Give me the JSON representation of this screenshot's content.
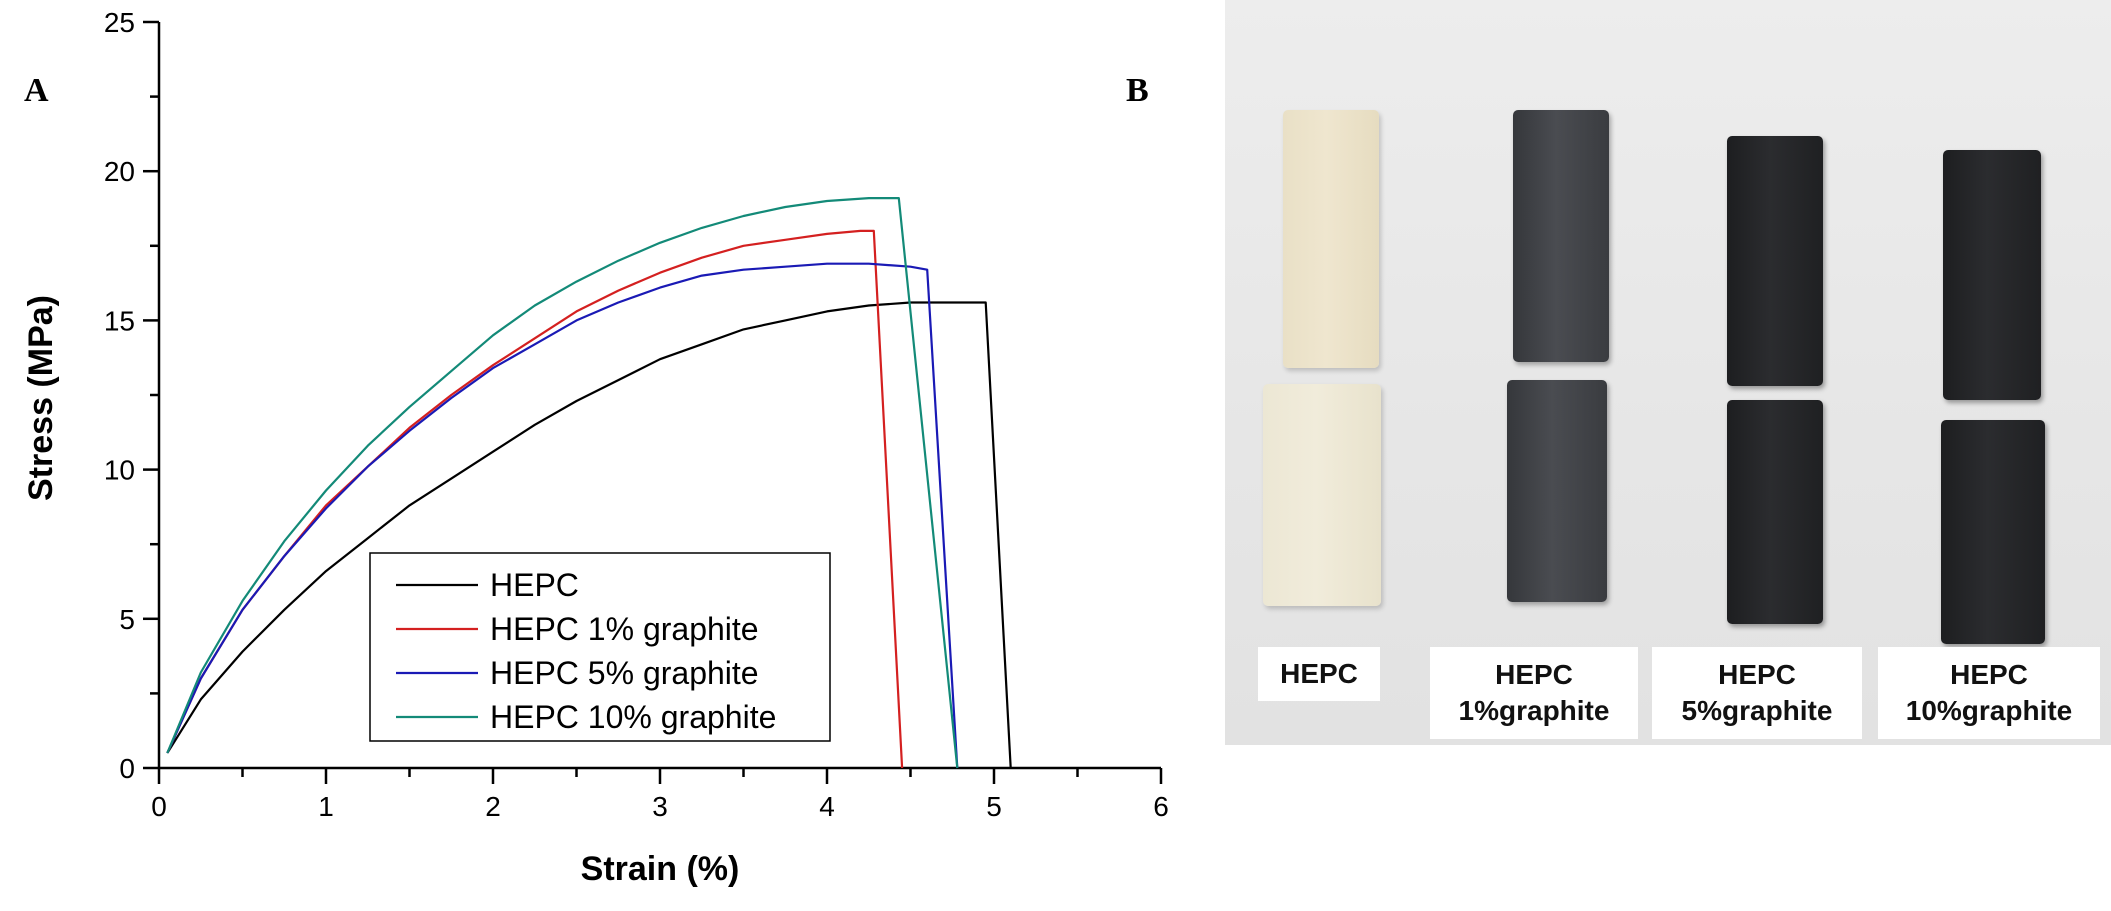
{
  "panels": {
    "a_label": "A",
    "b_label": "B"
  },
  "chart_data": {
    "type": "line",
    "title": "",
    "xlabel": "Strain (%)",
    "ylabel": "Stress (MPa)",
    "xlim": [
      0,
      6
    ],
    "ylim": [
      0,
      25
    ],
    "xticks": [
      0,
      1,
      2,
      3,
      4,
      5,
      6
    ],
    "yticks": [
      0,
      5,
      10,
      15,
      20,
      25
    ],
    "grid": false,
    "legend_position": "bottom-center",
    "series": [
      {
        "name": "HEPC",
        "color": "#000000",
        "x": [
          0.05,
          0.25,
          0.5,
          0.75,
          1.0,
          1.25,
          1.5,
          1.75,
          2.0,
          2.25,
          2.5,
          2.75,
          3.0,
          3.25,
          3.5,
          3.75,
          4.0,
          4.25,
          4.5,
          4.75,
          4.95,
          5.1
        ],
        "y": [
          0.5,
          2.3,
          3.9,
          5.3,
          6.6,
          7.7,
          8.8,
          9.7,
          10.6,
          11.5,
          12.3,
          13.0,
          13.7,
          14.2,
          14.7,
          15.0,
          15.3,
          15.5,
          15.6,
          15.6,
          15.6,
          0.0
        ]
      },
      {
        "name": "HEPC 1% graphite",
        "color": "#d42020",
        "x": [
          0.05,
          0.25,
          0.5,
          0.75,
          1.0,
          1.25,
          1.5,
          1.75,
          2.0,
          2.25,
          2.5,
          2.75,
          3.0,
          3.25,
          3.5,
          3.75,
          4.0,
          4.2,
          4.28,
          4.45
        ],
        "y": [
          0.5,
          3.0,
          5.3,
          7.1,
          8.8,
          10.1,
          11.4,
          12.5,
          13.5,
          14.4,
          15.3,
          16.0,
          16.6,
          17.1,
          17.5,
          17.7,
          17.9,
          18.0,
          18.0,
          0.0
        ]
      },
      {
        "name": "HEPC 5% graphite",
        "color": "#1a1ab5",
        "x": [
          0.05,
          0.25,
          0.5,
          0.75,
          1.0,
          1.25,
          1.5,
          1.75,
          2.0,
          2.25,
          2.5,
          2.75,
          3.0,
          3.25,
          3.5,
          3.75,
          4.0,
          4.25,
          4.5,
          4.6,
          4.78
        ],
        "y": [
          0.5,
          3.0,
          5.3,
          7.1,
          8.7,
          10.1,
          11.3,
          12.4,
          13.4,
          14.2,
          15.0,
          15.6,
          16.1,
          16.5,
          16.7,
          16.8,
          16.9,
          16.9,
          16.8,
          16.7,
          0.0
        ]
      },
      {
        "name": "HEPC 10% graphite",
        "color": "#138a78",
        "x": [
          0.05,
          0.25,
          0.5,
          0.75,
          1.0,
          1.25,
          1.5,
          1.75,
          2.0,
          2.25,
          2.5,
          2.75,
          3.0,
          3.25,
          3.5,
          3.75,
          4.0,
          4.25,
          4.43,
          4.78
        ],
        "y": [
          0.5,
          3.2,
          5.6,
          7.6,
          9.3,
          10.8,
          12.1,
          13.3,
          14.5,
          15.5,
          16.3,
          17.0,
          17.6,
          18.1,
          18.5,
          18.8,
          19.0,
          19.1,
          19.1,
          0.0
        ]
      }
    ]
  },
  "photo": {
    "labels": [
      "HEPC",
      "HEPC\n1%graphite",
      "HEPC\n5%graphite",
      "HEPC\n10%graphite"
    ]
  }
}
